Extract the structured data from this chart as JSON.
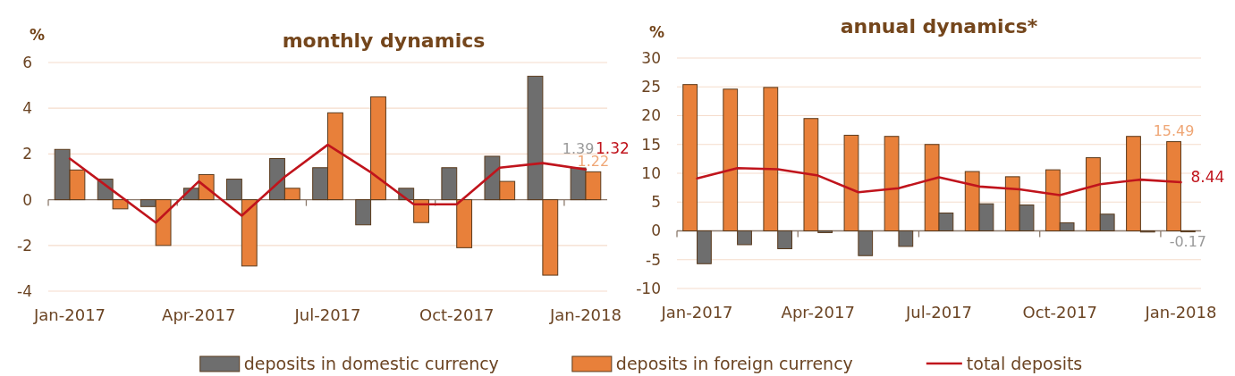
{
  "chart_data": [
    {
      "type": "bar",
      "title": "monthly dynamics",
      "ylabel": "%",
      "categories": [
        "Jan-2017",
        null,
        null,
        "Apr-2017",
        null,
        null,
        "Jul-2017",
        null,
        null,
        "Oct-2017",
        null,
        null,
        "Jan-2018"
      ],
      "series": [
        {
          "name": "deposits in domestic currency",
          "color": "#6e6e6e",
          "values": [
            2.2,
            0.9,
            -0.3,
            0.5,
            0.9,
            1.8,
            1.4,
            -1.1,
            0.5,
            1.4,
            1.9,
            5.4,
            1.39
          ],
          "value_labels": [
            null,
            null,
            null,
            null,
            null,
            null,
            null,
            null,
            null,
            null,
            null,
            null,
            "1.39"
          ]
        },
        {
          "name": "deposits in foreign currency",
          "color": "#e8803a",
          "values": [
            1.3,
            -0.4,
            -2.0,
            1.1,
            -2.9,
            0.5,
            3.8,
            4.5,
            -1.0,
            -2.1,
            0.8,
            -3.3,
            1.22
          ],
          "value_labels": [
            null,
            null,
            null,
            null,
            null,
            null,
            null,
            null,
            null,
            null,
            null,
            null,
            "1.22"
          ]
        },
        {
          "name": "total deposits",
          "type": "line",
          "color": "#c0141c",
          "values": [
            1.8,
            0.4,
            -1.0,
            0.8,
            -0.7,
            1.0,
            2.4,
            1.2,
            -0.2,
            -0.2,
            1.4,
            1.6,
            1.32
          ],
          "value_labels": [
            null,
            null,
            null,
            null,
            null,
            null,
            null,
            null,
            null,
            null,
            null,
            null,
            "1.32"
          ]
        }
      ],
      "ylim": [
        -4,
        6
      ],
      "yticks": [
        -4,
        -2,
        0,
        2,
        4,
        6
      ],
      "grid": "y",
      "legend": "bottom"
    },
    {
      "type": "bar",
      "title": "annual dynamics*",
      "ylabel": "%",
      "categories": [
        "Jan-2017",
        null,
        null,
        "Apr-2017",
        null,
        null,
        "Jul-2017",
        null,
        null,
        "Oct-2017",
        null,
        null,
        "Jan-2018"
      ],
      "series": [
        {
          "name": "deposits in foreign currency",
          "color": "#e8803a",
          "values": [
            25.4,
            24.6,
            24.9,
            19.5,
            16.6,
            16.4,
            15.0,
            10.3,
            9.4,
            10.6,
            12.7,
            16.4,
            15.49
          ],
          "value_labels": [
            null,
            null,
            null,
            null,
            null,
            null,
            null,
            null,
            null,
            null,
            null,
            null,
            "15.49"
          ]
        },
        {
          "name": "deposits in domestic currency",
          "color": "#6e6e6e",
          "values": [
            -5.7,
            -2.4,
            -3.1,
            -0.3,
            -4.3,
            -2.7,
            3.1,
            4.7,
            4.5,
            1.4,
            2.9,
            -0.2,
            -0.17
          ],
          "value_labels": [
            null,
            null,
            null,
            null,
            null,
            null,
            null,
            null,
            null,
            null,
            null,
            null,
            "-0.17"
          ]
        },
        {
          "name": "total deposits",
          "type": "line",
          "color": "#c0141c",
          "values": [
            9.1,
            10.9,
            10.7,
            9.6,
            6.7,
            7.4,
            9.3,
            7.7,
            7.2,
            6.2,
            8.1,
            8.9,
            8.44
          ],
          "value_labels": [
            null,
            null,
            null,
            null,
            null,
            null,
            null,
            null,
            null,
            null,
            null,
            null,
            "8.44"
          ]
        }
      ],
      "ylim": [
        -10,
        30
      ],
      "yticks": [
        -10,
        -5,
        0,
        5,
        10,
        15,
        20,
        25,
        30
      ],
      "grid": "y",
      "legend": "bottom"
    }
  ]
}
